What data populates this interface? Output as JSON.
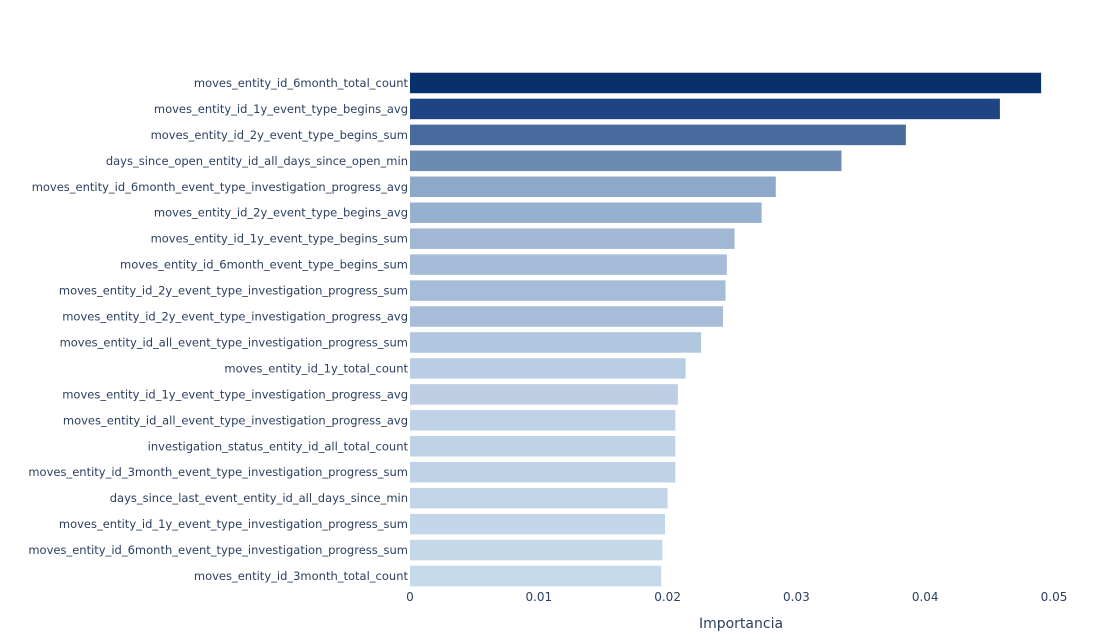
{
  "chart_data": {
    "type": "bar",
    "orientation": "horizontal",
    "categories": [
      "moves_entity_id_6month_total_count",
      "moves_entity_id_1y_event_type_begins_avg",
      "moves_entity_id_2y_event_type_begins_sum",
      "days_since_open_entity_id_all_days_since_open_min",
      "moves_entity_id_6month_event_type_investigation_progress_avg",
      "moves_entity_id_2y_event_type_begins_avg",
      "moves_entity_id_1y_event_type_begins_sum",
      "moves_entity_id_6month_event_type_begins_sum",
      "moves_entity_id_2y_event_type_investigation_progress_sum",
      "moves_entity_id_2y_event_type_investigation_progress_avg",
      "moves_entity_id_all_event_type_investigation_progress_sum",
      "moves_entity_id_1y_total_count",
      "moves_entity_id_1y_event_type_investigation_progress_avg",
      "moves_entity_id_all_event_type_investigation_progress_avg",
      "investigation_status_entity_id_all_total_count",
      "moves_entity_id_3month_event_type_investigation_progress_sum",
      "days_since_last_event_entity_id_all_days_since_min",
      "moves_entity_id_1y_event_type_investigation_progress_sum",
      "moves_entity_id_6month_event_type_investigation_progress_sum",
      "moves_entity_id_3month_total_count"
    ],
    "values": [
      0.049,
      0.0458,
      0.0385,
      0.0335,
      0.0284,
      0.0273,
      0.0252,
      0.0246,
      0.0245,
      0.0243,
      0.0226,
      0.0214,
      0.0208,
      0.0206,
      0.0206,
      0.0206,
      0.02,
      0.0198,
      0.0196,
      0.0195
    ],
    "colors": [
      "#08306b",
      "#1e4482",
      "#496a9d",
      "#6b8bb3",
      "#8da8c9",
      "#96b0cf",
      "#a1b8d5",
      "#a5bbd8",
      "#a6bcd8",
      "#a7bcd8",
      "#b1c6df",
      "#b9cde4",
      "#becfe5",
      "#bfd2e7",
      "#bfd2e7",
      "#bfd2e7",
      "#c3d6e9",
      "#c4d7ea",
      "#c5d8ea",
      "#c6d9eb"
    ],
    "xlabel": "Importancia",
    "xlim": [
      0,
      0.05
    ],
    "xticks": [
      0,
      0.01,
      0.02,
      0.03,
      0.04,
      0.05
    ],
    "xtick_labels": [
      "0",
      "0.01",
      "0.02",
      "0.03",
      "0.04",
      "0.05"
    ],
    "grid": false,
    "legend": "none"
  }
}
